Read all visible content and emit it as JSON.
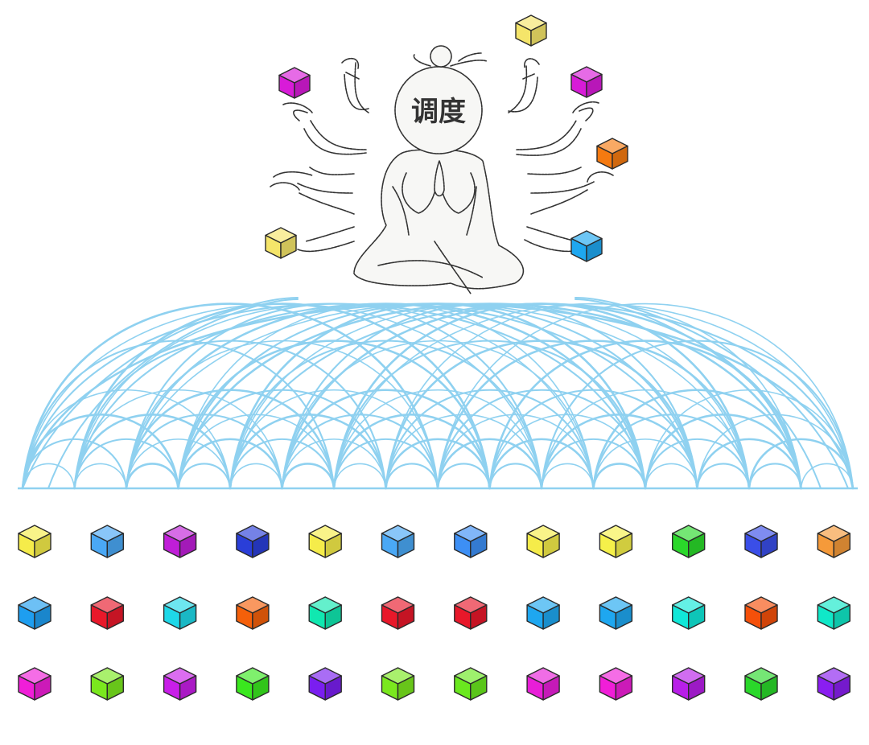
{
  "figure": {
    "label": "调度",
    "held_blocks": [
      {
        "color": "#f5e56a"
      },
      {
        "color": "#d81bd8"
      },
      {
        "color": "#d81bd8"
      },
      {
        "color": "#f57a10"
      },
      {
        "color": "#f5e56a"
      },
      {
        "color": "#1ea7f0"
      }
    ]
  },
  "blocks": {
    "rows": [
      [
        "#f5ec4a",
        "#4aa8f5",
        "#c01ed8",
        "#2a3ed8",
        "#f5ec4a",
        "#4aa8f5",
        "#3d8ff5",
        "#f5ec4a",
        "#f5f04a",
        "#2ad82a",
        "#3a4ee8",
        "#f59a3a"
      ],
      [
        "#1e9ef0",
        "#e8182a",
        "#1ed8e8",
        "#f5600a",
        "#10e8b0",
        "#e8182a",
        "#e8182a",
        "#1ea7f0",
        "#1ea7f0",
        "#10e8d8",
        "#f5500a",
        "#10e8c8"
      ],
      [
        "#f01ed8",
        "#7ae81e",
        "#c81ee8",
        "#3ae81e",
        "#7a1ef0",
        "#7ae81e",
        "#6ae81e",
        "#e81ed8",
        "#f01ed8",
        "#b81ee8",
        "#2ad82a",
        "#8a1ef0"
      ]
    ]
  }
}
